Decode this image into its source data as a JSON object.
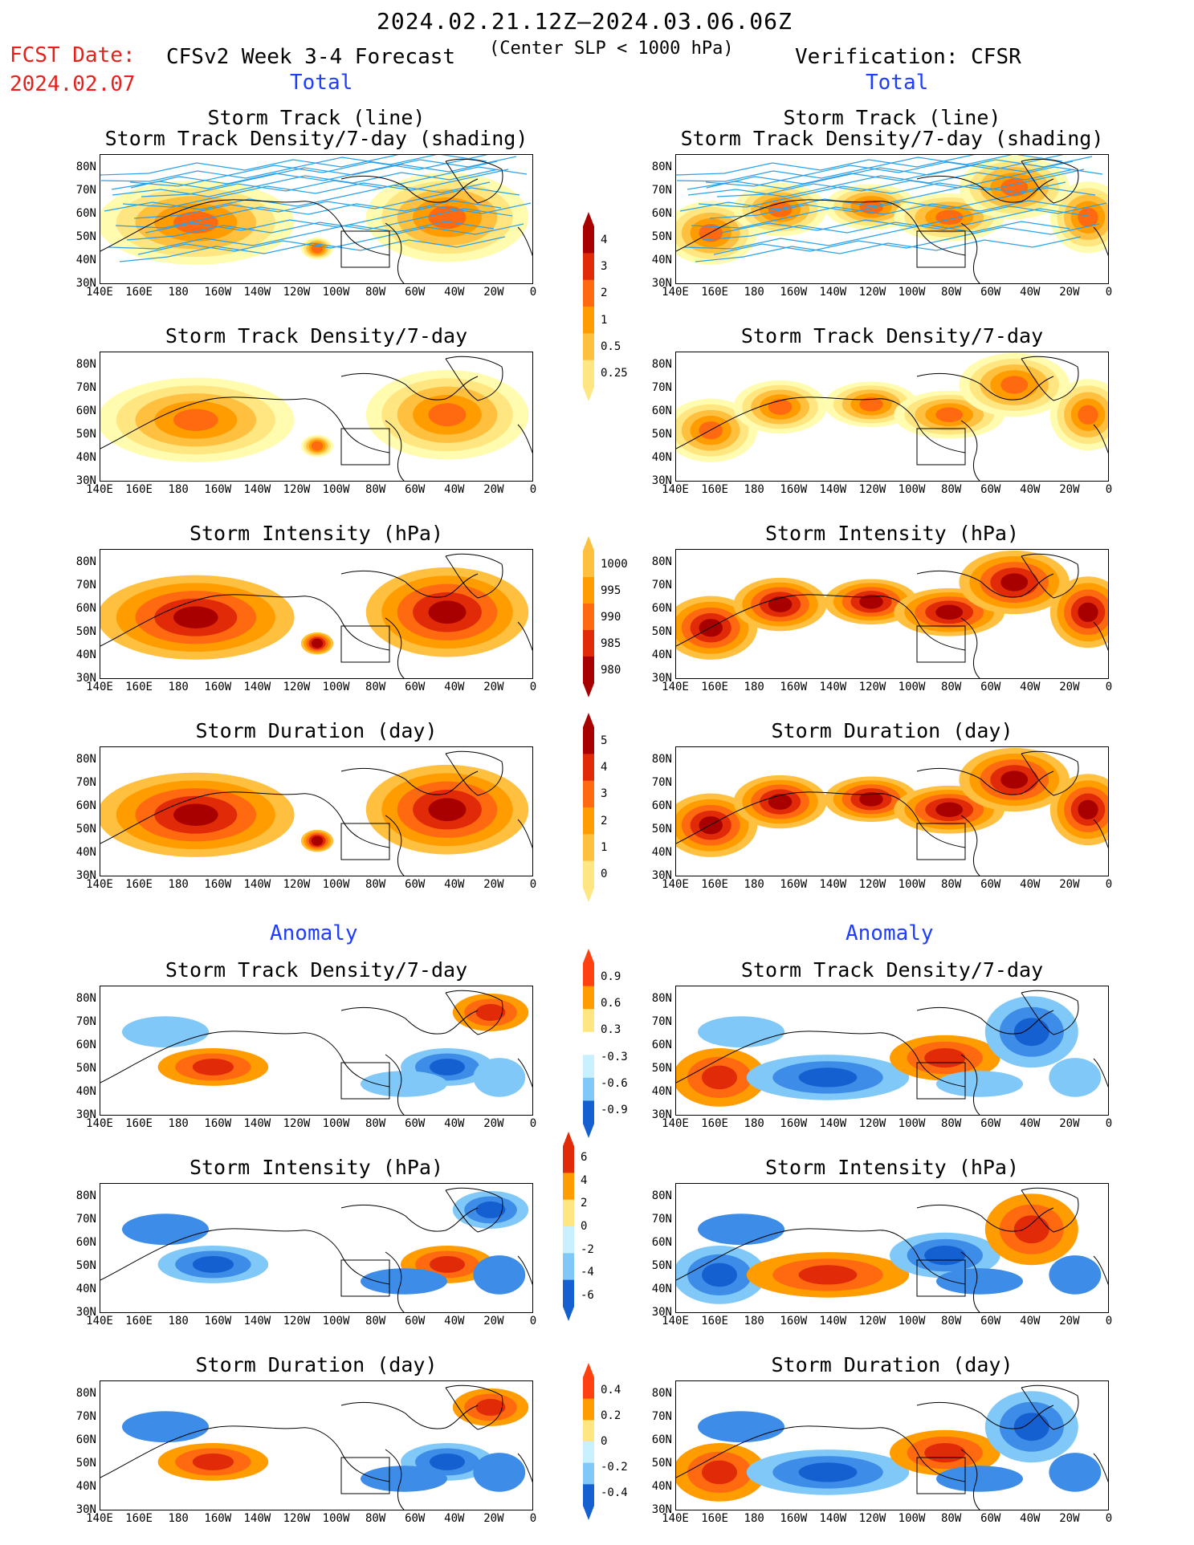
{
  "header": {
    "date_range": "2024.02.21.12Z–2024.03.06.06Z",
    "fcst_label": "FCST Date:",
    "fcst_date": "2024.02.07",
    "forecast_title": "CFSv2 Week 3-4 Forecast",
    "criterion": "(Center SLP < 1000 hPa)",
    "verification": "Verification: CFSR",
    "total_left": "Total",
    "total_right": "Total",
    "anomaly_left": "Anomaly",
    "anomaly_right": "Anomaly"
  },
  "panel_titles": {
    "track_line": "Storm Track (line)",
    "track_shading": "Storm Track Density/7-day (shading)",
    "density": "Storm Track Density/7-day",
    "intensity": "Storm Intensity (hPa)",
    "duration": "Storm Duration (day)"
  },
  "lat_labels": [
    "80N",
    "70N",
    "60N",
    "50N",
    "40N",
    "30N"
  ],
  "lon_labels": [
    "140E",
    "160E",
    "180",
    "160W",
    "140W",
    "120W",
    "100W",
    "80W",
    "60W",
    "40W",
    "20W",
    "0"
  ],
  "colorbars": {
    "density_total": [
      "0.25",
      "0.5",
      "1",
      "2",
      "3",
      "4"
    ],
    "intensity_total": [
      "1000",
      "995",
      "990",
      "985",
      "980"
    ],
    "duration_total": [
      "0",
      "1",
      "2",
      "3",
      "4",
      "5"
    ],
    "density_anom": [
      "-0.9",
      "-0.6",
      "-0.3",
      "0.3",
      "0.6",
      "0.9"
    ],
    "intensity_anom": [
      "-6",
      "-4",
      "-2",
      "0",
      "2",
      "4",
      "6"
    ],
    "duration_anom": [
      "-0.4",
      "-0.2",
      "0",
      "0.2",
      "0.4"
    ]
  },
  "colors": {
    "warm": [
      "#fffcb0",
      "#ffe680",
      "#ffc040",
      "#ff9c00",
      "#ff6a10",
      "#e02a08",
      "#a80000"
    ],
    "cold": [
      "#c8f0ff",
      "#80c8f8",
      "#3c8ce8",
      "#1460d0"
    ],
    "track_line": "#2aa0e8",
    "title_blue": "#1f3dff",
    "fcst_red": "#e8201c"
  }
}
